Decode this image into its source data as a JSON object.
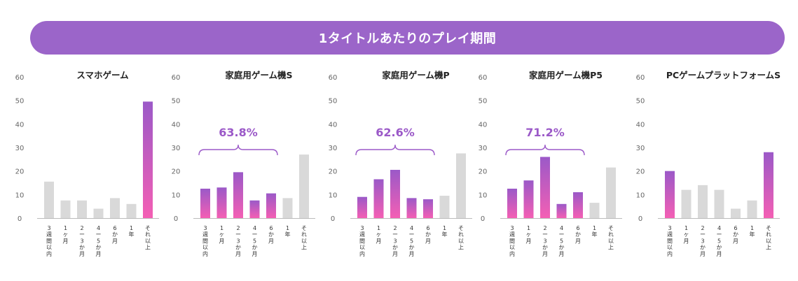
{
  "banner": {
    "title": "1タイトルあたりのプレイ期間"
  },
  "colors": {
    "banner": "#9b65c9",
    "highlight_top": "#9b59c8",
    "highlight_bottom": "#f45fb4",
    "other": "#d9d9d9",
    "annotation": "#9b59c8"
  },
  "chart_data": [
    {
      "type": "bar",
      "title": "スマホゲーム",
      "ylim": [
        0,
        60
      ],
      "yticks": [
        0,
        10,
        20,
        30,
        40,
        50,
        60
      ],
      "categories": [
        "3週間以内",
        "1ヶ月",
        "2ー3か月",
        "4ー5か月",
        "6か月",
        "1年",
        "それ以上"
      ],
      "category_lines": [
        [
          "3",
          "週",
          "間",
          "以",
          "内"
        ],
        [
          "1",
          "ヶ",
          "月"
        ],
        [
          "2",
          "ー",
          "3",
          "か",
          "月"
        ],
        [
          "4",
          "ー",
          "5",
          "か",
          "月"
        ],
        [
          "6",
          "か",
          "月"
        ],
        [
          "1",
          "年"
        ],
        [
          "そ",
          "れ",
          "以",
          "上"
        ]
      ],
      "values": [
        15.5,
        7.5,
        7.5,
        4,
        8.5,
        6,
        49.5
      ],
      "highlight": [
        false,
        false,
        false,
        false,
        false,
        false,
        true
      ],
      "annotation": null
    },
    {
      "type": "bar",
      "title": "家庭用ゲーム機S",
      "ylim": [
        0,
        60
      ],
      "yticks": [
        0,
        10,
        20,
        30,
        40,
        50,
        60
      ],
      "categories": [
        "3週間以内",
        "1ヶ月",
        "2ー3か月",
        "4ー5か月",
        "6か月",
        "1年",
        "それ以上"
      ],
      "category_lines": [
        [
          "3",
          "週",
          "間",
          "以",
          "内"
        ],
        [
          "1",
          "ヶ",
          "月"
        ],
        [
          "2",
          "ー",
          "3",
          "か",
          "月"
        ],
        [
          "4",
          "ー",
          "5",
          "か",
          "月"
        ],
        [
          "6",
          "か",
          "月"
        ],
        [
          "1",
          "年"
        ],
        [
          "そ",
          "れ",
          "以",
          "上"
        ]
      ],
      "values": [
        12.5,
        13,
        19.5,
        7.5,
        10.5,
        8.5,
        27
      ],
      "highlight": [
        true,
        true,
        true,
        true,
        true,
        false,
        false
      ],
      "annotation": {
        "text": "63.8%",
        "from": 0,
        "to": 4
      }
    },
    {
      "type": "bar",
      "title": "家庭用ゲーム機P",
      "ylim": [
        0,
        60
      ],
      "yticks": [
        0,
        10,
        20,
        30,
        40,
        50,
        60
      ],
      "categories": [
        "3週間以内",
        "1ヶ月",
        "2ー3か月",
        "4ー5か月",
        "6か月",
        "1年",
        "それ以上"
      ],
      "category_lines": [
        [
          "3",
          "週",
          "間",
          "以",
          "内"
        ],
        [
          "1",
          "ヶ",
          "月"
        ],
        [
          "2",
          "ー",
          "3",
          "か",
          "月"
        ],
        [
          "4",
          "ー",
          "5",
          "か",
          "月"
        ],
        [
          "6",
          "か",
          "月"
        ],
        [
          "1",
          "年"
        ],
        [
          "そ",
          "れ",
          "以",
          "上"
        ]
      ],
      "values": [
        9,
        16.5,
        20.5,
        8.5,
        8,
        9.5,
        27.5
      ],
      "highlight": [
        true,
        true,
        true,
        true,
        true,
        false,
        false
      ],
      "annotation": {
        "text": "62.6%",
        "from": 0,
        "to": 4
      }
    },
    {
      "type": "bar",
      "title": "家庭用ゲーム機P5",
      "ylim": [
        0,
        60
      ],
      "yticks": [
        0,
        10,
        20,
        30,
        40,
        50,
        60
      ],
      "categories": [
        "3週間以内",
        "1ヶ月",
        "2ー3か月",
        "4ー5か月",
        "6か月",
        "1年",
        "それ以上"
      ],
      "category_lines": [
        [
          "3",
          "週",
          "間",
          "以",
          "内"
        ],
        [
          "1",
          "ヶ",
          "月"
        ],
        [
          "2",
          "ー",
          "3",
          "か",
          "月"
        ],
        [
          "4",
          "ー",
          "5",
          "か",
          "月"
        ],
        [
          "6",
          "か",
          "月"
        ],
        [
          "1",
          "年"
        ],
        [
          "そ",
          "れ",
          "以",
          "上"
        ]
      ],
      "values": [
        12.5,
        16,
        26,
        6,
        11,
        6.5,
        21.5
      ],
      "highlight": [
        true,
        true,
        true,
        true,
        true,
        false,
        false
      ],
      "annotation": {
        "text": "71.2%",
        "from": 0,
        "to": 4
      }
    },
    {
      "type": "bar",
      "title": "PCゲームプラットフォームS",
      "ylim": [
        0,
        60
      ],
      "yticks": [
        0,
        10,
        20,
        30,
        40,
        50,
        60
      ],
      "categories": [
        "3週間以内",
        "1ヶ月",
        "2ー3か月",
        "4ー5か月",
        "6か月",
        "1年",
        "それ以上"
      ],
      "category_lines": [
        [
          "3",
          "週",
          "間",
          "以",
          "内"
        ],
        [
          "1",
          "ヶ",
          "月"
        ],
        [
          "2",
          "ー",
          "3",
          "か",
          "月"
        ],
        [
          "4",
          "ー",
          "5",
          "か",
          "月"
        ],
        [
          "6",
          "か",
          "月"
        ],
        [
          "1",
          "年"
        ],
        [
          "そ",
          "れ",
          "以",
          "上"
        ]
      ],
      "values": [
        20,
        12,
        14,
        12,
        4,
        7.5,
        28
      ],
      "highlight": [
        true,
        false,
        false,
        false,
        false,
        false,
        true
      ],
      "annotation": null
    }
  ]
}
